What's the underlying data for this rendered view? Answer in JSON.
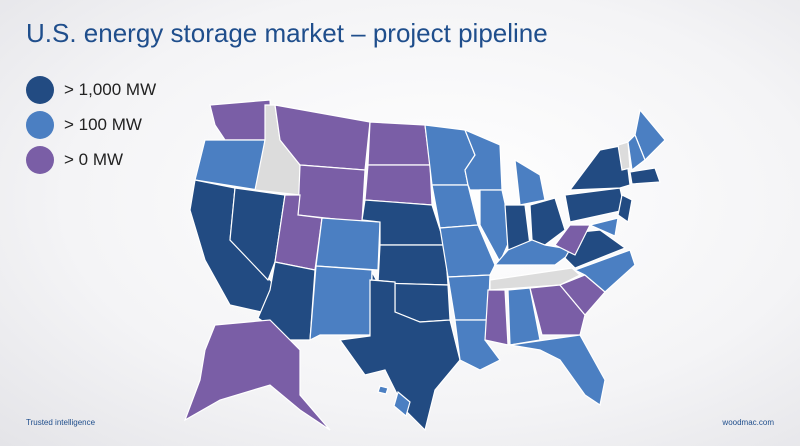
{
  "title": "U.S. energy storage market – project pipeline",
  "legend": [
    {
      "label": "> 1,000 MW",
      "color": "#224b82"
    },
    {
      "label": "> 100 MW",
      "color": "#4b7fc2"
    },
    {
      "label": "> 0 MW",
      "color": "#7a5ea6"
    }
  ],
  "footer": {
    "left": "Trusted intelligence",
    "right": "woodmac.com"
  }
}
